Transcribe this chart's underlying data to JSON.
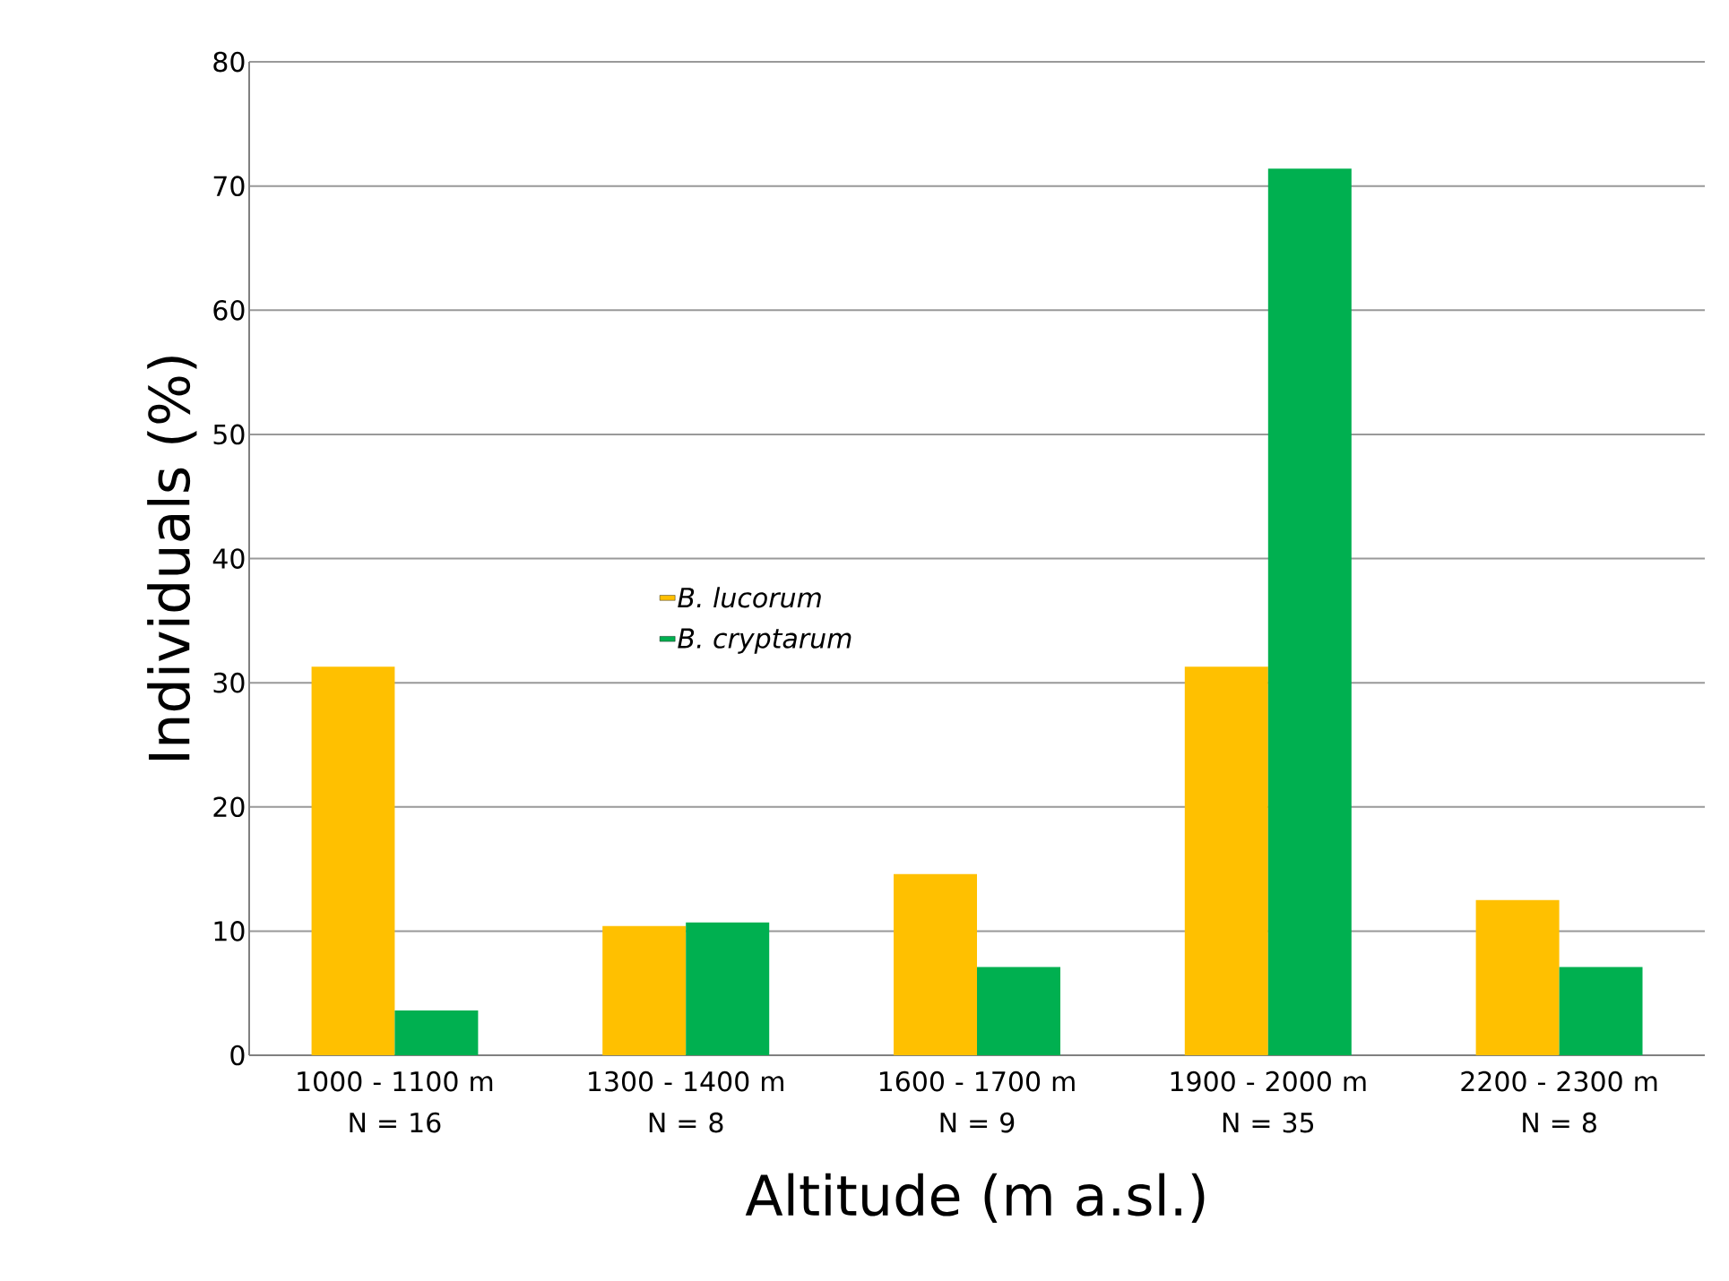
{
  "chart_data": {
    "type": "bar",
    "xlabel": "Altitude (m a.sl.)",
    "ylabel": "Individuals (%)",
    "categories": [
      "1000 - 1100 m\nN = 16",
      "1300 - 1400 m\nN = 8",
      "1600 - 1700 m\nN = 9",
      "1900 - 2000 m\nN = 35",
      "2200 - 2300 m\nN = 8"
    ],
    "series": [
      {
        "name": "B. lucorum",
        "color": "#ffc000",
        "values": [
          31.3,
          10.4,
          14.6,
          31.3,
          12.5
        ]
      },
      {
        "name": "B. cryptarum",
        "color": "#00b050",
        "values": [
          3.6,
          10.7,
          7.1,
          71.4,
          7.1
        ]
      }
    ],
    "ylim": [
      0,
      80
    ],
    "yticks": [
      0,
      10,
      20,
      30,
      40,
      50,
      60,
      70,
      80
    ],
    "grid": "y",
    "legend": "center left"
  }
}
